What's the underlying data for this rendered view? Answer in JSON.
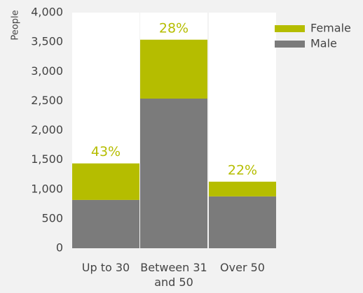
{
  "chart_data": {
    "type": "stacked_bar",
    "y_label": "People",
    "categories": [
      "Up to 30",
      "Between 31 and 50",
      "Over 50"
    ],
    "series": [
      {
        "name": "Male",
        "color": "#7b7b7b",
        "values": [
          820,
          2540,
          880
        ]
      },
      {
        "name": "Female",
        "color": "#b5bd00",
        "values": [
          620,
          1000,
          250
        ]
      }
    ],
    "annotations": [
      "43%",
      "28%",
      "22%"
    ],
    "ylim": [
      0,
      4000
    ],
    "yticks": [
      0,
      500,
      {
        "value": 1000,
        "label": "1,000"
      },
      {
        "value": 1500,
        "label": "1,500"
      },
      {
        "value": 2000,
        "label": "2,000"
      },
      {
        "value": 2500,
        "label": "2,500"
      },
      {
        "value": 3000,
        "label": "3,000"
      },
      {
        "value": 3500,
        "label": "3,500"
      },
      {
        "value": 4000,
        "label": "4,000"
      }
    ],
    "legend": "top-right"
  }
}
